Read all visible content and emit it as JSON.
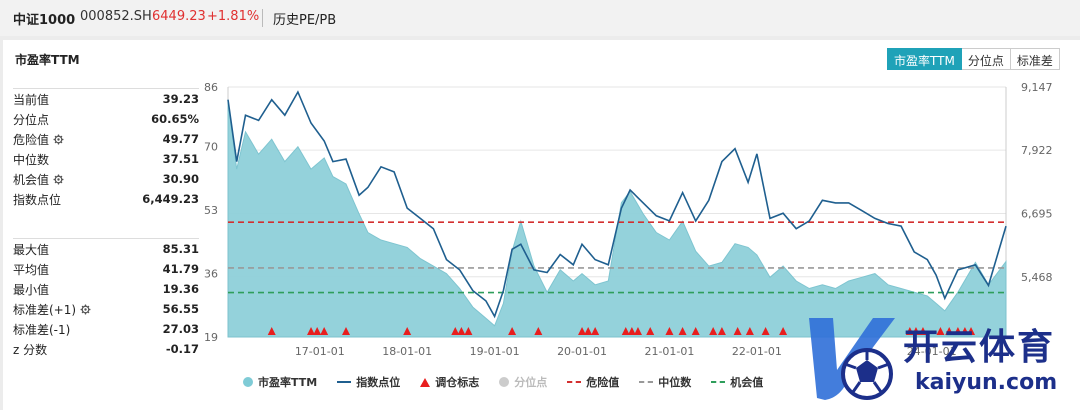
{
  "header": {
    "index_name": "中证1000",
    "code": "000852.SH",
    "price": "6449.23",
    "change": "+1.81%",
    "history_tab": "历史PE/PB"
  },
  "panel": {
    "title": "市盈率TTM",
    "tabs": [
      "市盈率TTM",
      "分位点",
      "标准差"
    ],
    "active_tab": 0
  },
  "stats_top": [
    {
      "label": "当前值",
      "value": "39.23",
      "gear": false
    },
    {
      "label": "分位点",
      "value": "60.65%",
      "gear": false
    },
    {
      "label": "危险值",
      "value": "49.77",
      "gear": true
    },
    {
      "label": "中位数",
      "value": "37.51",
      "gear": false
    },
    {
      "label": "机会值",
      "value": "30.90",
      "gear": true
    },
    {
      "label": "指数点位",
      "value": "6,449.23",
      "gear": false
    }
  ],
  "stats_bottom": [
    {
      "label": "最大值",
      "value": "85.31",
      "gear": false
    },
    {
      "label": "平均值",
      "value": "41.79",
      "gear": false
    },
    {
      "label": "最小值",
      "value": "19.36",
      "gear": false
    },
    {
      "label": "标准差(+1)",
      "value": "56.55",
      "gear": true
    },
    {
      "label": "标准差(-1)",
      "value": "27.03",
      "gear": false
    },
    {
      "label": "z 分数",
      "value": "-0.17",
      "gear": false
    }
  ],
  "legend": [
    {
      "label": "市盈率TTM",
      "kind": "dot",
      "color": "#7fcbd6",
      "dim": false
    },
    {
      "label": "指数点位",
      "kind": "line",
      "color": "#1f5f8f",
      "dim": false
    },
    {
      "label": "调仓标志",
      "kind": "tri",
      "color": "#e81e1e",
      "dim": false
    },
    {
      "label": "分位点",
      "kind": "dot",
      "color": "#cccccc",
      "dim": true
    },
    {
      "label": "危险值",
      "kind": "dash",
      "color": "#d32f2f",
      "dim": false
    },
    {
      "label": "中位数",
      "kind": "dash",
      "color": "#999999",
      "dim": false
    },
    {
      "label": "机会值",
      "kind": "dash",
      "color": "#2e9e5b",
      "dim": false
    }
  ],
  "watermark": {
    "brand_cn": "开云体育",
    "brand_url": "kaiyun.com"
  },
  "colors": {
    "pe_fill": "#8fd0da",
    "index_line": "#1f5f8f",
    "danger": "#d32f2f",
    "median": "#999999",
    "opportunity": "#2e9e5b",
    "marker": "#e81e1e"
  },
  "chart_data": {
    "type": "area",
    "left_axis": {
      "ticks": [
        19,
        36,
        53,
        70,
        86
      ],
      "range": [
        19,
        86
      ]
    },
    "right_axis": {
      "ticks": [
        "5,468",
        "6,695",
        "7,922",
        "9,147"
      ],
      "range": [
        4300,
        9147
      ]
    },
    "x_ticks": [
      "17-01-01",
      "18-01-01",
      "19-01-01",
      "20-01-01",
      "21-01-01",
      "22-01-01",
      "24-01-01"
    ],
    "reference_lines": {
      "danger": 49.77,
      "median": 37.51,
      "opportunity": 30.9
    },
    "series": [
      {
        "name": "市盈率TTM",
        "axis": "left",
        "t": [
          2015.95,
          2016.05,
          2016.15,
          2016.3,
          2016.45,
          2016.6,
          2016.75,
          2016.9,
          2017.05,
          2017.15,
          2017.3,
          2017.45,
          2017.55,
          2017.7,
          2017.85,
          2018.0,
          2018.15,
          2018.3,
          2018.45,
          2018.6,
          2018.75,
          2018.9,
          2019.0,
          2019.1,
          2019.2,
          2019.3,
          2019.45,
          2019.6,
          2019.75,
          2019.9,
          2020.0,
          2020.15,
          2020.3,
          2020.45,
          2020.55,
          2020.7,
          2020.85,
          2021.0,
          2021.15,
          2021.3,
          2021.45,
          2021.6,
          2021.75,
          2021.9,
          2022.0,
          2022.15,
          2022.3,
          2022.45,
          2022.6,
          2022.75,
          2022.9,
          2023.05,
          2023.2,
          2023.35,
          2023.5,
          2023.65,
          2023.8,
          2023.95,
          2024.05,
          2024.15,
          2024.3,
          2024.5,
          2024.65,
          2024.85
        ],
        "values": [
          82,
          64,
          74,
          68,
          72,
          66,
          70,
          64,
          67,
          62,
          60,
          52,
          47,
          45,
          44,
          43,
          40,
          38,
          36,
          32,
          27,
          24,
          22,
          28,
          42,
          50,
          38,
          31,
          37,
          34,
          36,
          33,
          34,
          55,
          58,
          52,
          47,
          45,
          50,
          42,
          38,
          39,
          44,
          43,
          41,
          35,
          38,
          34,
          32,
          33,
          32,
          34,
          35,
          36,
          33,
          32,
          31,
          30,
          28,
          26,
          31,
          39,
          33,
          39.23
        ]
      },
      {
        "name": "指数点位",
        "axis": "right",
        "t": [
          2015.95,
          2016.05,
          2016.15,
          2016.3,
          2016.45,
          2016.6,
          2016.75,
          2016.9,
          2017.05,
          2017.15,
          2017.3,
          2017.45,
          2017.55,
          2017.7,
          2017.85,
          2018.0,
          2018.15,
          2018.3,
          2018.45,
          2018.6,
          2018.75,
          2018.9,
          2019.0,
          2019.1,
          2019.2,
          2019.3,
          2019.45,
          2019.6,
          2019.75,
          2019.9,
          2020.0,
          2020.15,
          2020.3,
          2020.45,
          2020.55,
          2020.7,
          2020.85,
          2021.0,
          2021.15,
          2021.3,
          2021.45,
          2021.6,
          2021.75,
          2021.9,
          2022.0,
          2022.15,
          2022.3,
          2022.45,
          2022.6,
          2022.75,
          2022.9,
          2023.05,
          2023.2,
          2023.35,
          2023.5,
          2023.65,
          2023.8,
          2023.95,
          2024.05,
          2024.15,
          2024.3,
          2024.5,
          2024.65,
          2024.85
        ],
        "values": [
          8900,
          7700,
          8600,
          8500,
          8900,
          8600,
          9050,
          8450,
          8100,
          7700,
          7750,
          7050,
          7200,
          7600,
          7500,
          6800,
          6600,
          6400,
          5800,
          5600,
          5200,
          5000,
          4700,
          5200,
          6000,
          6100,
          5600,
          5550,
          5900,
          5700,
          6100,
          5800,
          5700,
          6800,
          7150,
          6900,
          6650,
          6550,
          7100,
          6550,
          6950,
          7700,
          7950,
          7300,
          7850,
          6600,
          6700,
          6400,
          6550,
          6950,
          6900,
          6900,
          6750,
          6600,
          6500,
          6450,
          5950,
          5800,
          5500,
          5050,
          5600,
          5700,
          5300,
          6449.23
        ]
      }
    ],
    "rebalance_markers": [
      2016.45,
      2016.9,
      2016.97,
      2017.05,
      2017.3,
      2018.0,
      2018.55,
      2018.62,
      2018.7,
      2019.2,
      2019.5,
      2020.0,
      2020.07,
      2020.15,
      2020.5,
      2020.57,
      2020.64,
      2020.78,
      2021.0,
      2021.15,
      2021.3,
      2021.5,
      2021.6,
      2021.78,
      2021.92,
      2022.1,
      2022.3,
      2023.75,
      2023.82,
      2023.9,
      2024.1,
      2024.2,
      2024.3,
      2024.38,
      2024.45
    ]
  }
}
